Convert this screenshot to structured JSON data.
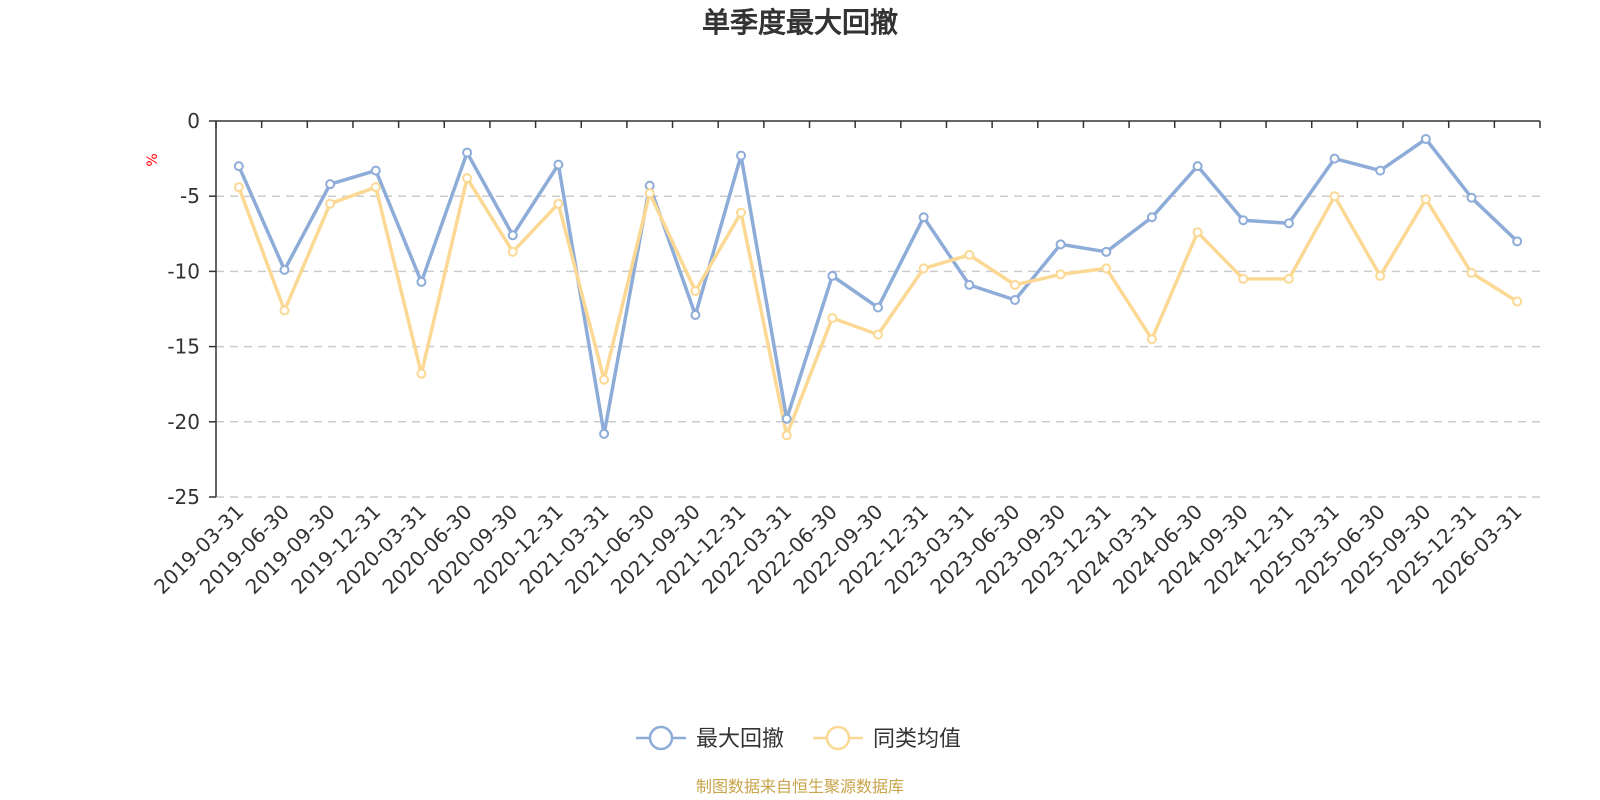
{
  "chart_data": {
    "type": "line",
    "title": "单季度最大回撤",
    "ylabel": "%",
    "ylim": [
      -25,
      0
    ],
    "yticks": [
      0,
      -5,
      -10,
      -15,
      -20,
      -25
    ],
    "grid": true,
    "legend_position": "bottom-center",
    "categories": [
      "2019-03-31",
      "2019-06-30",
      "2019-09-30",
      "2019-12-31",
      "2020-03-31",
      "2020-06-30",
      "2020-09-30",
      "2020-12-31",
      "2021-03-31",
      "2021-06-30",
      "2021-09-30",
      "2021-12-31",
      "2022-03-31",
      "2022-06-30",
      "2022-09-30",
      "2022-12-31",
      "2023-03-31",
      "2023-06-30",
      "2023-09-30",
      "2023-12-31",
      "2024-03-31",
      "2024-06-30",
      "2024-09-30",
      "2024-12-31",
      "2025-03-31",
      "2025-06-30",
      "2025-09-30",
      "2025-12-31",
      "2026-03-31"
    ],
    "series": [
      {
        "name": "最大回撤",
        "color": "#8eacd8",
        "values": [
          -3.0,
          -9.9,
          -4.2,
          -3.3,
          -10.7,
          -2.1,
          -7.6,
          -2.9,
          -20.8,
          -4.3,
          -12.9,
          -2.3,
          -19.8,
          -10.3,
          -12.4,
          -6.4,
          -10.9,
          -11.9,
          -8.2,
          -8.7,
          -6.4,
          -3.0,
          -6.6,
          -6.8,
          -2.5,
          -3.3,
          -1.2,
          -5.1,
          -8.0
        ]
      },
      {
        "name": "同类均值",
        "color": "#fbd995",
        "values": [
          -4.4,
          -12.6,
          -5.5,
          -4.4,
          -16.8,
          -3.8,
          -8.7,
          -5.5,
          -17.2,
          -4.8,
          -11.3,
          -6.1,
          -20.9,
          -13.1,
          -14.2,
          -9.8,
          -8.9,
          -10.9,
          -10.2,
          -9.8,
          -14.5,
          -7.4,
          -10.5,
          -10.5,
          -5.0,
          -10.3,
          -5.2,
          -10.1,
          -12.0
        ]
      }
    ],
    "source": "制图数据来自恒生聚源数据库"
  }
}
